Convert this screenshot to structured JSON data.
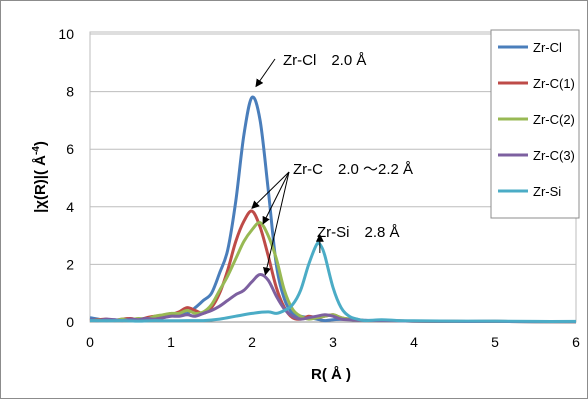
{
  "chart_data": {
    "type": "line",
    "xlabel": "R( Å )",
    "ylabel": "|χ(R)|( Å -4)",
    "ylabel_main": "|χ(R)|( Å",
    "ylabel_exp": "-4",
    "ylabel_close": ")",
    "xlim": [
      0,
      6
    ],
    "ylim": [
      0,
      10
    ],
    "x_ticks": [
      "0",
      "1",
      "2",
      "3",
      "4",
      "5",
      "6"
    ],
    "y_ticks": [
      "0",
      "2",
      "4",
      "6",
      "8",
      "10"
    ],
    "grid": "horizontal",
    "legend_position": "top-right",
    "series": [
      {
        "name": "Zr-Cl",
        "color": "#4a7ebb",
        "points": [
          [
            0,
            0.15
          ],
          [
            0.1,
            0.1
          ],
          [
            0.2,
            0.05
          ],
          [
            0.3,
            0.08
          ],
          [
            0.4,
            0.05
          ],
          [
            0.5,
            0.1
          ],
          [
            0.6,
            0.1
          ],
          [
            0.7,
            0.12
          ],
          [
            0.8,
            0.08
          ],
          [
            0.9,
            0.15
          ],
          [
            1.0,
            0.25
          ],
          [
            1.1,
            0.3
          ],
          [
            1.2,
            0.3
          ],
          [
            1.3,
            0.5
          ],
          [
            1.4,
            0.75
          ],
          [
            1.5,
            1.0
          ],
          [
            1.6,
            1.7
          ],
          [
            1.7,
            2.5
          ],
          [
            1.8,
            4.2
          ],
          [
            1.9,
            6.5
          ],
          [
            2.0,
            7.8
          ],
          [
            2.1,
            7.0
          ],
          [
            2.2,
            4.6
          ],
          [
            2.3,
            2.0
          ],
          [
            2.4,
            0.8
          ],
          [
            2.5,
            0.3
          ],
          [
            2.6,
            0.2
          ],
          [
            2.7,
            0.15
          ],
          [
            2.8,
            0.1
          ],
          [
            2.9,
            0.05
          ],
          [
            3.0,
            0.08
          ],
          [
            3.2,
            0.1
          ],
          [
            3.4,
            0.06
          ],
          [
            3.6,
            0.05
          ],
          [
            3.8,
            0.04
          ],
          [
            4.0,
            0.03
          ],
          [
            4.5,
            0.02
          ],
          [
            5.0,
            0.02
          ],
          [
            5.5,
            0.01
          ],
          [
            6.0,
            0.01
          ]
        ]
      },
      {
        "name": "Zr-C(1)",
        "color": "#be4b48",
        "points": [
          [
            0,
            0.05
          ],
          [
            0.1,
            0.08
          ],
          [
            0.2,
            0.1
          ],
          [
            0.3,
            0.05
          ],
          [
            0.4,
            0.1
          ],
          [
            0.5,
            0.12
          ],
          [
            0.6,
            0.08
          ],
          [
            0.7,
            0.15
          ],
          [
            0.8,
            0.2
          ],
          [
            0.9,
            0.15
          ],
          [
            1.0,
            0.25
          ],
          [
            1.1,
            0.35
          ],
          [
            1.2,
            0.5
          ],
          [
            1.3,
            0.4
          ],
          [
            1.4,
            0.3
          ],
          [
            1.5,
            0.5
          ],
          [
            1.6,
            1.0
          ],
          [
            1.7,
            1.8
          ],
          [
            1.8,
            2.8
          ],
          [
            1.9,
            3.5
          ],
          [
            2.0,
            3.85
          ],
          [
            2.1,
            3.3
          ],
          [
            2.2,
            2.3
          ],
          [
            2.3,
            1.2
          ],
          [
            2.4,
            0.5
          ],
          [
            2.5,
            0.15
          ],
          [
            2.6,
            0.1
          ],
          [
            2.7,
            0.2
          ],
          [
            2.8,
            0.15
          ],
          [
            2.9,
            0.2
          ],
          [
            3.0,
            0.25
          ],
          [
            3.1,
            0.15
          ],
          [
            3.2,
            0.1
          ],
          [
            3.4,
            0.05
          ],
          [
            3.6,
            0.05
          ],
          [
            4.0,
            0.03
          ],
          [
            4.5,
            0.02
          ],
          [
            5.0,
            0.02
          ],
          [
            6.0,
            0.01
          ]
        ]
      },
      {
        "name": "Zr-C(2)",
        "color": "#98b954",
        "points": [
          [
            0,
            0.05
          ],
          [
            0.1,
            0.06
          ],
          [
            0.2,
            0.08
          ],
          [
            0.3,
            0.06
          ],
          [
            0.4,
            0.1
          ],
          [
            0.5,
            0.08
          ],
          [
            0.6,
            0.12
          ],
          [
            0.7,
            0.1
          ],
          [
            0.8,
            0.2
          ],
          [
            0.9,
            0.25
          ],
          [
            1.0,
            0.3
          ],
          [
            1.1,
            0.3
          ],
          [
            1.2,
            0.4
          ],
          [
            1.3,
            0.3
          ],
          [
            1.4,
            0.35
          ],
          [
            1.5,
            0.6
          ],
          [
            1.6,
            1.1
          ],
          [
            1.7,
            1.6
          ],
          [
            1.8,
            2.2
          ],
          [
            1.9,
            2.8
          ],
          [
            2.0,
            3.2
          ],
          [
            2.1,
            3.45
          ],
          [
            2.2,
            3.0
          ],
          [
            2.3,
            2.2
          ],
          [
            2.4,
            1.1
          ],
          [
            2.5,
            0.45
          ],
          [
            2.6,
            0.2
          ],
          [
            2.7,
            0.1
          ],
          [
            2.8,
            0.15
          ],
          [
            2.9,
            0.2
          ],
          [
            3.0,
            0.25
          ],
          [
            3.1,
            0.15
          ],
          [
            3.2,
            0.1
          ],
          [
            3.4,
            0.05
          ],
          [
            3.6,
            0.05
          ],
          [
            4.0,
            0.03
          ],
          [
            4.5,
            0.02
          ],
          [
            5.0,
            0.02
          ],
          [
            6.0,
            0.01
          ]
        ]
      },
      {
        "name": "Zr-C(3)",
        "color": "#7d60a0",
        "points": [
          [
            0,
            0.08
          ],
          [
            0.1,
            0.05
          ],
          [
            0.2,
            0.1
          ],
          [
            0.3,
            0.08
          ],
          [
            0.4,
            0.05
          ],
          [
            0.5,
            0.1
          ],
          [
            0.6,
            0.08
          ],
          [
            0.7,
            0.12
          ],
          [
            0.8,
            0.1
          ],
          [
            0.9,
            0.15
          ],
          [
            1.0,
            0.2
          ],
          [
            1.1,
            0.2
          ],
          [
            1.2,
            0.25
          ],
          [
            1.3,
            0.2
          ],
          [
            1.4,
            0.3
          ],
          [
            1.5,
            0.4
          ],
          [
            1.6,
            0.55
          ],
          [
            1.7,
            0.75
          ],
          [
            1.8,
            0.95
          ],
          [
            1.9,
            1.1
          ],
          [
            2.0,
            1.4
          ],
          [
            2.1,
            1.65
          ],
          [
            2.2,
            1.45
          ],
          [
            2.3,
            0.9
          ],
          [
            2.4,
            0.45
          ],
          [
            2.5,
            0.2
          ],
          [
            2.6,
            0.1
          ],
          [
            2.7,
            0.15
          ],
          [
            2.8,
            0.2
          ],
          [
            2.9,
            0.25
          ],
          [
            3.0,
            0.2
          ],
          [
            3.1,
            0.1
          ],
          [
            3.2,
            0.08
          ],
          [
            3.4,
            0.05
          ],
          [
            3.6,
            0.05
          ],
          [
            4.0,
            0.03
          ],
          [
            4.5,
            0.02
          ],
          [
            5.0,
            0.02
          ],
          [
            6.0,
            0.01
          ]
        ]
      },
      {
        "name": "Zr-Si",
        "color": "#4bacc6",
        "points": [
          [
            0,
            0.05
          ],
          [
            0.2,
            0.04
          ],
          [
            0.4,
            0.05
          ],
          [
            0.6,
            0.03
          ],
          [
            0.8,
            0.05
          ],
          [
            1.0,
            0.04
          ],
          [
            1.2,
            0.05
          ],
          [
            1.4,
            0.05
          ],
          [
            1.6,
            0.1
          ],
          [
            1.8,
            0.2
          ],
          [
            2.0,
            0.3
          ],
          [
            2.2,
            0.35
          ],
          [
            2.3,
            0.3
          ],
          [
            2.4,
            0.4
          ],
          [
            2.5,
            0.6
          ],
          [
            2.6,
            1.1
          ],
          [
            2.7,
            2.0
          ],
          [
            2.8,
            2.7
          ],
          [
            2.85,
            2.65
          ],
          [
            2.9,
            2.3
          ],
          [
            3.0,
            1.2
          ],
          [
            3.1,
            0.5
          ],
          [
            3.2,
            0.2
          ],
          [
            3.3,
            0.1
          ],
          [
            3.4,
            0.05
          ],
          [
            3.6,
            0.08
          ],
          [
            3.8,
            0.05
          ],
          [
            4.0,
            0.04
          ],
          [
            4.5,
            0.03
          ],
          [
            5.0,
            0.03
          ],
          [
            5.5,
            0.02
          ],
          [
            6.0,
            0.02
          ]
        ]
      }
    ],
    "annotations": [
      {
        "text": "Zr-Cl　2.0 Å",
        "x": 2.0,
        "y": 8.25
      },
      {
        "text": "Zr-C　2.0 ～2.2 Å",
        "x": 2.1,
        "y": 4.3
      },
      {
        "text": "Zr-Si　2.8 Å",
        "x": 2.85,
        "y": 3.3
      }
    ]
  }
}
